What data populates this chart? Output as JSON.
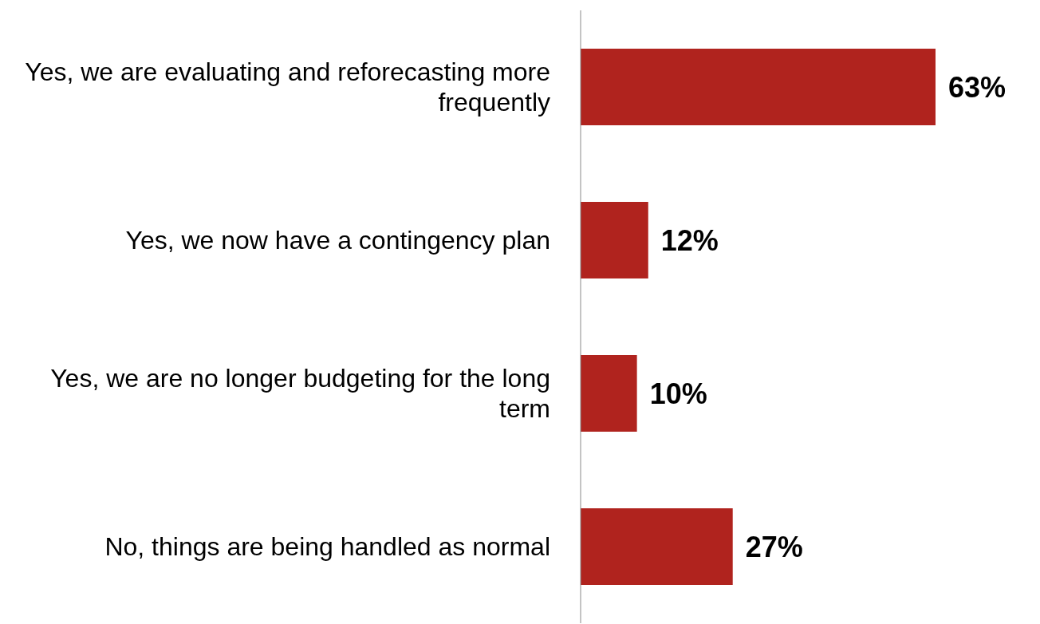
{
  "chart_data": {
    "type": "bar",
    "orientation": "horizontal",
    "categories": [
      "Yes, we are evaluating and reforecasting more frequently",
      "Yes, we now have a contingency plan",
      "Yes, we are no longer budgeting for the long term",
      "No, things are being handled as normal"
    ],
    "values": [
      63,
      12,
      10,
      27
    ],
    "color": "#b0231e",
    "value_labels": [
      "63%",
      "12%",
      "10%",
      "27%"
    ]
  }
}
